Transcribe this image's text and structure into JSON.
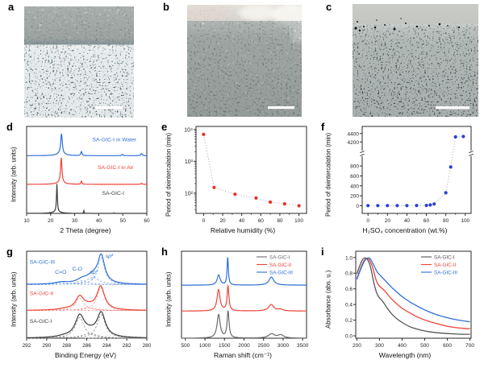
{
  "panels": [
    {
      "letter": "a",
      "kind": "micrograph"
    },
    {
      "letter": "b",
      "kind": "micrograph"
    },
    {
      "letter": "c",
      "kind": "micrograph"
    },
    {
      "letter": "d",
      "kind": "chart"
    },
    {
      "letter": "e",
      "kind": "chart"
    },
    {
      "letter": "f",
      "kind": "chart"
    },
    {
      "letter": "g",
      "kind": "chart"
    },
    {
      "letter": "h",
      "kind": "chart"
    },
    {
      "letter": "i",
      "kind": "chart"
    }
  ],
  "micrographs": {
    "a": {
      "scale_bar": true
    },
    "b": {
      "scale_bar": true
    },
    "c": {
      "scale_bar": true
    }
  },
  "chart_data": [
    {
      "id": "d",
      "type": "line",
      "variant": "xrd",
      "xlabel": "2 Theta (degree)",
      "ylabel": "Intensity (arb. units)",
      "xlim": [
        10,
        60
      ],
      "xticks": [
        10,
        20,
        30,
        40,
        50,
        60
      ],
      "ymax": 4.25,
      "series": [
        {
          "name": "SA-GIC-I",
          "color": "#3d3d3d",
          "offset": 0,
          "peaks": [
            [
              22.6,
              1.38,
              0.22
            ],
            [
              22.4,
              0.07,
              2.2
            ],
            [
              33.8,
              0.15,
              0.12
            ],
            [
              46.3,
              0.03,
              0.15
            ]
          ],
          "label": {
            "text": "SA-GIC-I",
            "x": 46,
            "y": 0.9
          }
        },
        {
          "name": "SA-GIC-I in Air",
          "color": "#ee4338",
          "offset": 1.42,
          "peaks": [
            [
              24.4,
              1.22,
              0.34
            ],
            [
              24.2,
              0.08,
              2.0
            ],
            [
              32.8,
              0.16,
              0.24
            ],
            [
              57.8,
              0.05,
              0.3
            ]
          ],
          "label": {
            "text": "SA-GIC-I in Air",
            "x": 47,
            "y": 2.16
          }
        },
        {
          "name": "SA-GIC-I in Water",
          "color": "#2f6fd6",
          "offset": 2.82,
          "peaks": [
            [
              24.5,
              0.98,
              0.4
            ],
            [
              24.3,
              0.09,
              2.0
            ],
            [
              32.8,
              0.2,
              0.3
            ],
            [
              49.8,
              0.06,
              0.35
            ],
            [
              57.8,
              0.1,
              0.35
            ]
          ],
          "label": {
            "text": "SA-GIC-I in Water",
            "x": 46.5,
            "y": 3.53
          }
        }
      ]
    },
    {
      "id": "e",
      "type": "scatter",
      "variant": "log-scatter",
      "xlabel": "Relative humidity (%)",
      "ylabel": "Period of deintercalation (min)",
      "xlim": [
        -8,
        108
      ],
      "xticks": [
        0,
        20,
        40,
        60,
        80,
        100
      ],
      "xminor": 10,
      "yscale": "log",
      "ylim": [
        23,
        12500
      ],
      "yticks": [
        {
          "v": 100,
          "label": "10²"
        },
        {
          "v": 1000,
          "label": "10³"
        },
        {
          "v": 10000,
          "label": "10⁴"
        }
      ],
      "color": "#e8302a",
      "line_color": "#9a9a9a",
      "points": [
        [
          0,
          7000
        ],
        [
          11,
          150
        ],
        [
          33,
          92
        ],
        [
          55,
          70
        ],
        [
          70,
          52
        ],
        [
          85,
          46
        ],
        [
          100,
          40
        ]
      ]
    },
    {
      "id": "f",
      "type": "scatter",
      "variant": "broken-axis-scatter",
      "xlabel": "H₂SO₄ concentration (wt.%)",
      "ylabel": "Period of deintercalation (min)",
      "xlim": [
        -6,
        106
      ],
      "xticks": [
        0,
        20,
        40,
        60,
        80,
        100
      ],
      "xminor": 10,
      "broken": {
        "lower": {
          "range": [
            -80,
            930
          ],
          "frac": [
            0.381,
            0.957
          ],
          "ticks": [
            0,
            200,
            400,
            600,
            800
          ]
        },
        "upper": {
          "range": [
            4130,
            4470
          ],
          "frac": [
            0.047,
            0.213
          ],
          "ticks": [
            4200,
            4400
          ]
        },
        "break_frac": 0.31
      },
      "color": "#2a3fd9",
      "line_color": "#9a9a9a",
      "points": [
        [
          0,
          2
        ],
        [
          10,
          2
        ],
        [
          20,
          2
        ],
        [
          30,
          2
        ],
        [
          40,
          2
        ],
        [
          50,
          3
        ],
        [
          60,
          5
        ],
        [
          64,
          15
        ],
        [
          68,
          35
        ],
        [
          80,
          260
        ],
        [
          85,
          780
        ],
        [
          90,
          4320
        ],
        [
          98,
          4330
        ]
      ]
    },
    {
      "id": "g",
      "type": "line",
      "variant": "xps",
      "xlabel": "Binding Energy (eV)",
      "ylabel": "Intensity (arb. units)",
      "xlim": [
        292,
        280
      ],
      "xticks": [
        292,
        290,
        288,
        286,
        284,
        282,
        280
      ],
      "ymax": 4.15,
      "series": [
        {
          "name": "SA-GIC-I",
          "color": "#3d3d3d",
          "component_color": "#8a8a8a",
          "offset": 0,
          "components": [
            [
              286.7,
              0.98,
              0.55
            ],
            [
              285.7,
              0.22,
              0.95
            ],
            [
              284.55,
              1.12,
              0.5
            ],
            [
              288.3,
              0.05,
              0.8
            ]
          ],
          "label": {
            "text": "SA-GIC-I",
            "x": 291.7,
            "y": 0.73,
            "anchor": "start"
          }
        },
        {
          "name": "SA-GIC-II",
          "color": "#ee4338",
          "component_color": "#f0908a",
          "offset": 1.32,
          "components": [
            [
              286.7,
              0.6,
              0.5
            ],
            [
              285.8,
              0.14,
              0.9
            ],
            [
              284.6,
              1.1,
              0.46
            ],
            [
              288.2,
              0.05,
              0.8
            ]
          ],
          "label": {
            "text": "SA-GIC-II",
            "x": 291.7,
            "y": 2.05,
            "anchor": "start"
          }
        },
        {
          "name": "SA-GIC-III",
          "color": "#2f6fd6",
          "component_color": "#7fa6e4",
          "offset": 2.56,
          "components": [
            [
              288.5,
              0.09,
              0.8
            ],
            [
              286.45,
              0.18,
              0.7
            ],
            [
              285.4,
              0.35,
              0.75
            ],
            [
              284.55,
              1.28,
              0.42
            ]
          ],
          "label": {
            "text": "SA-GIC-III",
            "x": 291.7,
            "y": 3.55,
            "anchor": "start"
          }
        }
      ],
      "annotations": [
        {
          "text": "C=O",
          "x": 288.6,
          "y": 3.08,
          "color": "#2f6fd6"
        },
        {
          "text": "C-O",
          "x": 286.95,
          "y": 3.22,
          "color": "#2f6fd6"
        },
        {
          "text": "sp³",
          "x": 285.3,
          "y": 3.08,
          "color": "#2f6fd6",
          "italic": true
        },
        {
          "text": "sp²",
          "x": 283.75,
          "y": 3.85,
          "color": "#2f6fd6",
          "italic": true
        }
      ],
      "leaders": [
        {
          "x1": 285.2,
          "y1": 2.96,
          "x2": 285.5,
          "y2": 2.8,
          "color": "#2f6fd6"
        }
      ]
    },
    {
      "id": "h",
      "type": "line",
      "variant": "raman",
      "legend": true,
      "xlabel": "Raman shift (cm⁻¹)",
      "ylabel": "Intensity (arb. units)",
      "xlim": [
        400,
        3600
      ],
      "xticks": [
        500,
        1000,
        1500,
        2000,
        2500,
        3000,
        3500
      ],
      "ymax": 4.1,
      "series": [
        {
          "name": "SA-GIC-I",
          "color": "#6b6b6b",
          "offset": 0,
          "peaks": [
            [
              1350,
              1.1,
              48
            ],
            [
              1592,
              1.25,
              30
            ],
            [
              2705,
              0.2,
              95
            ],
            [
              2940,
              0.15,
              85
            ]
          ]
        },
        {
          "name": "SA-GIC-II",
          "color": "#ee4338",
          "offset": 1.28,
          "peaks": [
            [
              1348,
              1.0,
              46
            ],
            [
              1590,
              1.15,
              28
            ],
            [
              2695,
              0.3,
              80
            ],
            [
              2930,
              0.08,
              70
            ]
          ]
        },
        {
          "name": "SA-GIC-III",
          "color": "#2f6fd6",
          "offset": 2.5,
          "peaks": [
            [
              1352,
              0.48,
              46
            ],
            [
              1583,
              1.3,
              20
            ],
            [
              2700,
              0.38,
              75
            ]
          ]
        }
      ]
    },
    {
      "id": "i",
      "type": "line",
      "variant": "uv-vis",
      "legend": true,
      "xlabel": "Wavelength (nm)",
      "ylabel": "Absorbance (abs. u.)",
      "xlim": [
        195,
        705
      ],
      "xticks": [
        200,
        300,
        400,
        500,
        600,
        700
      ],
      "ylim": [
        -0.03,
        1.08
      ],
      "yticks": [
        0,
        0.2,
        0.4,
        0.6,
        0.8,
        1
      ],
      "ytick_fmt": "fixed1",
      "series": [
        {
          "name": "SA-GIC-I",
          "color": "#555555",
          "points": [
            [
              200,
              0.79
            ],
            [
              215,
              0.92
            ],
            [
              230,
              1.0
            ],
            [
              245,
              0.99
            ],
            [
              260,
              0.9
            ],
            [
              275,
              0.67
            ],
            [
              290,
              0.52
            ],
            [
              305,
              0.47
            ],
            [
              315,
              0.44
            ],
            [
              330,
              0.37
            ],
            [
              350,
              0.29
            ],
            [
              375,
              0.22
            ],
            [
              400,
              0.17
            ],
            [
              430,
              0.12
            ],
            [
              460,
              0.09
            ],
            [
              500,
              0.06
            ],
            [
              550,
              0.04
            ],
            [
              600,
              0.03
            ],
            [
              650,
              0.02
            ],
            [
              700,
              0.02
            ]
          ]
        },
        {
          "name": "SA-GIC-II",
          "color": "#ee4338",
          "points": [
            [
              200,
              0.73
            ],
            [
              220,
              0.9
            ],
            [
              240,
              1.0
            ],
            [
              255,
              0.98
            ],
            [
              270,
              0.88
            ],
            [
              285,
              0.7
            ],
            [
              300,
              0.63
            ],
            [
              315,
              0.6
            ],
            [
              330,
              0.55
            ],
            [
              350,
              0.48
            ],
            [
              375,
              0.41
            ],
            [
              400,
              0.35
            ],
            [
              430,
              0.3
            ],
            [
              460,
              0.25
            ],
            [
              500,
              0.2
            ],
            [
              550,
              0.16
            ],
            [
              600,
              0.12
            ],
            [
              650,
              0.1
            ],
            [
              700,
              0.09
            ]
          ]
        },
        {
          "name": "SA-GIC-III",
          "color": "#2f6fd6",
          "points": [
            [
              200,
              0.72
            ],
            [
              225,
              0.92
            ],
            [
              245,
              1.0
            ],
            [
              260,
              0.99
            ],
            [
              275,
              0.9
            ],
            [
              290,
              0.81
            ],
            [
              305,
              0.77
            ],
            [
              320,
              0.72
            ],
            [
              340,
              0.66
            ],
            [
              360,
              0.6
            ],
            [
              380,
              0.55
            ],
            [
              400,
              0.5
            ],
            [
              430,
              0.44
            ],
            [
              460,
              0.39
            ],
            [
              500,
              0.33
            ],
            [
              550,
              0.27
            ],
            [
              600,
              0.23
            ],
            [
              650,
              0.2
            ],
            [
              700,
              0.18
            ]
          ]
        }
      ]
    }
  ]
}
